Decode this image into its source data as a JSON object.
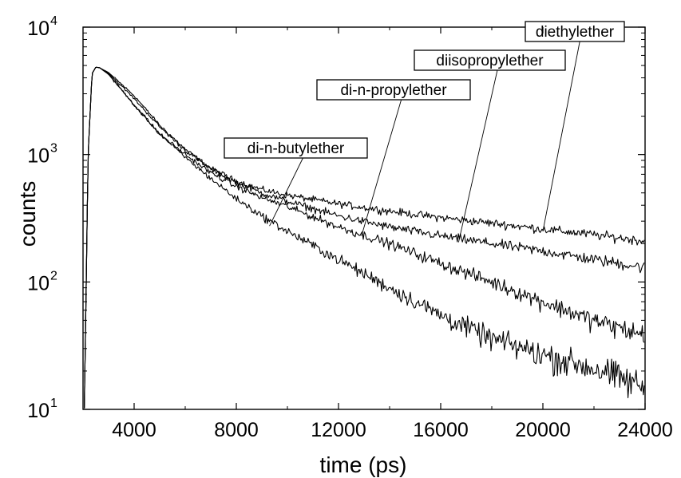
{
  "chart_data": {
    "type": "line",
    "xlabel": "time (ps)",
    "ylabel": "counts",
    "xlim": [
      2000,
      24000
    ],
    "ylim": [
      10,
      10000
    ],
    "yscale": "log",
    "grid": false,
    "x_ticks": [
      {
        "value": 4000,
        "label": "4000"
      },
      {
        "value": 8000,
        "label": "8000"
      },
      {
        "value": 12000,
        "label": "12000"
      },
      {
        "value": 16000,
        "label": "16000"
      },
      {
        "value": 20000,
        "label": "20000"
      },
      {
        "value": 24000,
        "label": "24000"
      }
    ],
    "y_ticks": [
      {
        "value": 10,
        "base": "10",
        "exp": "1"
      },
      {
        "value": 100,
        "base": "10",
        "exp": "2"
      },
      {
        "value": 1000,
        "base": "10",
        "exp": "3"
      },
      {
        "value": 10000,
        "base": "10",
        "exp": "4"
      }
    ],
    "series": [
      {
        "name": "diethylether",
        "x": [
          2050,
          2200,
          2350,
          2500,
          2650,
          3000,
          4000,
          5000,
          6000,
          7000,
          8000,
          9000,
          10000,
          12000,
          14000,
          16000,
          18000,
          20000,
          22000,
          24000
        ],
        "y": [
          10,
          1000,
          4300,
          4850,
          4800,
          4400,
          2900,
          1700,
          1100,
          780,
          620,
          530,
          480,
          410,
          360,
          320,
          290,
          260,
          235,
          210
        ]
      },
      {
        "name": "diisopropylether",
        "x": [
          2050,
          2200,
          2350,
          2500,
          2650,
          3000,
          4000,
          5000,
          6000,
          7000,
          8000,
          9000,
          10000,
          12000,
          14000,
          16000,
          18000,
          20000,
          22000,
          24000
        ],
        "y": [
          10,
          1000,
          4300,
          4850,
          4800,
          4350,
          2750,
          1650,
          1080,
          770,
          600,
          500,
          430,
          330,
          270,
          230,
          200,
          175,
          150,
          130
        ]
      },
      {
        "name": "di-n-propylether",
        "x": [
          2050,
          2200,
          2350,
          2500,
          2650,
          3000,
          4000,
          5000,
          6000,
          7000,
          8000,
          9000,
          10000,
          12000,
          14000,
          16000,
          18000,
          20000,
          22000,
          24000
        ],
        "y": [
          10,
          1000,
          4300,
          4850,
          4800,
          4300,
          2450,
          1450,
          1000,
          720,
          560,
          460,
          390,
          270,
          200,
          140,
          100,
          70,
          50,
          38
        ]
      },
      {
        "name": "di-n-butylether",
        "x": [
          2050,
          2200,
          2350,
          2500,
          2650,
          3000,
          4000,
          5000,
          6000,
          7000,
          8000,
          9000,
          10000,
          12000,
          14000,
          16000,
          18000,
          20000,
          22000,
          24000
        ],
        "y": [
          10,
          1000,
          4300,
          4850,
          4800,
          4250,
          2450,
          1450,
          950,
          650,
          450,
          330,
          250,
          150,
          90,
          55,
          36,
          27,
          21,
          15
        ]
      }
    ],
    "annotations": [
      {
        "text": "diethylether",
        "series": 0,
        "point": [
          20000,
          250
        ]
      },
      {
        "text": "diisopropylether",
        "series": 1,
        "point": [
          16700,
          205
        ]
      },
      {
        "text": "di-n-propylether",
        "series": 2,
        "point": [
          12900,
          230
        ]
      },
      {
        "text": "di-n-butylether",
        "series": 3,
        "point": [
          9300,
          275
        ]
      }
    ]
  }
}
